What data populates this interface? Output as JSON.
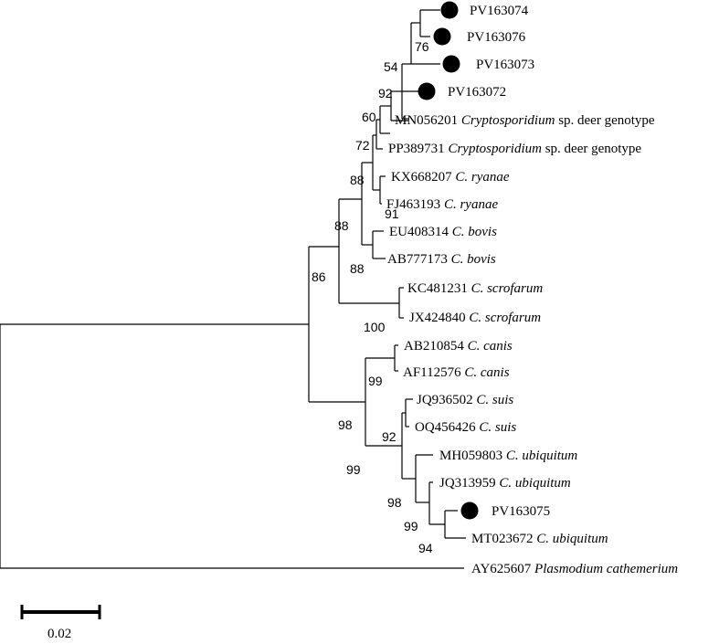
{
  "figure": {
    "type": "phylogenetic-tree",
    "study_marker": "filled-circle",
    "marker_color": "#000000",
    "line_color": "#000000"
  },
  "taxa": [
    {
      "accession": "PV163074",
      "species": "",
      "marked": true
    },
    {
      "accession": "PV163076",
      "species": "",
      "marked": true
    },
    {
      "accession": "PV163073",
      "species": "",
      "marked": true
    },
    {
      "accession": "PV163072",
      "species": "",
      "marked": true
    },
    {
      "accession": "MN056201",
      "species": "Cryptosporidium",
      "suffix": "sp. deer genotype",
      "marked": false
    },
    {
      "accession": "PP389731",
      "species": "Cryptosporidium",
      "suffix": "sp. deer genotype",
      "marked": false
    },
    {
      "accession": "KX668207",
      "species": "C. ryanae",
      "marked": false
    },
    {
      "accession": "FJ463193",
      "species": "C. ryanae",
      "marked": false
    },
    {
      "accession": "EU408314",
      "species": "C. bovis",
      "marked": false
    },
    {
      "accession": "AB777173",
      "species": "C. bovis",
      "marked": false
    },
    {
      "accession": "KC481231",
      "species": "C. scrofarum",
      "marked": false
    },
    {
      "accession": "JX424840",
      "species": "C. scrofarum",
      "marked": false
    },
    {
      "accession": "AB210854",
      "species": "C. canis",
      "marked": false
    },
    {
      "accession": "AF112576",
      "species": "C. canis",
      "marked": false
    },
    {
      "accession": "JQ936502",
      "species": "C. suis",
      "marked": false
    },
    {
      "accession": "OQ456426",
      "species": "C. suis",
      "marked": false
    },
    {
      "accession": "MH059803",
      "species": "C. ubiquitum",
      "marked": false
    },
    {
      "accession": "JQ313959",
      "species": "C. ubiquitum",
      "marked": false
    },
    {
      "accession": "PV163075",
      "species": "",
      "marked": true
    },
    {
      "accession": "MT023672",
      "species": "C. ubiquitum",
      "marked": false
    },
    {
      "accession": "AY625607",
      "species": "Plasmodium cathemerium",
      "marked": false
    }
  ],
  "bootstrap": [
    "76",
    "54",
    "92",
    "60",
    "72",
    "88",
    "91",
    "88",
    "88",
    "86",
    "100",
    "99",
    "92",
    "98",
    "99",
    "98",
    "99",
    "94"
  ],
  "scale_bar": {
    "label": "0.02",
    "length": 0.02
  }
}
